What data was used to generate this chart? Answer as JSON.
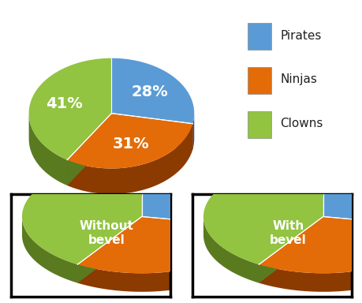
{
  "labels": [
    "Pirates",
    "Ninjas",
    "Clowns"
  ],
  "values": [
    28,
    31,
    41
  ],
  "pct_labels": [
    "28%",
    "31%",
    "41%"
  ],
  "colors_top": [
    "#5B9BD5",
    "#E36C09",
    "#92C341"
  ],
  "colors_side": [
    "#2E5090",
    "#8B3A00",
    "#5A7A20"
  ],
  "legend_colors": [
    "#5B9BD5",
    "#E36C09",
    "#92C341"
  ],
  "text_color": "#FFFFFF",
  "background": "#FFFFFF",
  "legend_labels": [
    "Pirates",
    "Ninjas",
    "Clowns"
  ],
  "box_label1": "Without\nbevel",
  "box_label2": "With\nbevel",
  "label_fontsize": 14,
  "legend_fontsize": 11
}
